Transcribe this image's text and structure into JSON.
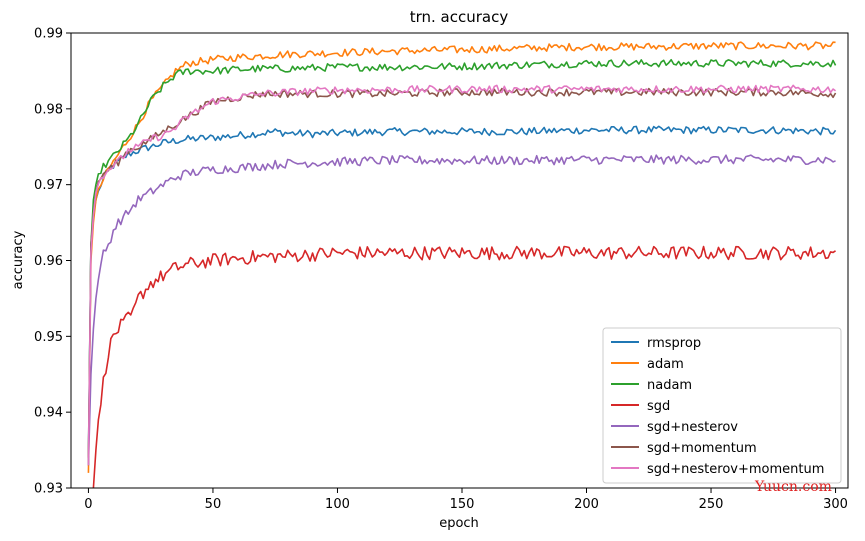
{
  "chart_data": {
    "type": "line",
    "title": "trn. accuracy",
    "xlabel": "epoch",
    "ylabel": "accuracy",
    "xlim": [
      -7,
      305
    ],
    "ylim": [
      0.93,
      0.99
    ],
    "xticks": [
      0,
      50,
      100,
      150,
      200,
      250,
      300
    ],
    "xtick_labels": [
      "0",
      "50",
      "100",
      "150",
      "200",
      "250",
      "300"
    ],
    "yticks": [
      0.93,
      0.94,
      0.95,
      0.96,
      0.97,
      0.98,
      0.99
    ],
    "ytick_labels": [
      "0.93",
      "0.94",
      "0.95",
      "0.96",
      "0.97",
      "0.98",
      "0.99"
    ],
    "grid": false,
    "legend_position": "lower-right",
    "watermark": "Yuucn.com",
    "series": [
      {
        "name": "rmsprop",
        "color": "#1f77b4",
        "x": [
          0,
          1,
          2,
          3,
          5,
          8,
          12,
          16,
          20,
          25,
          30,
          35,
          40,
          50,
          60,
          70,
          75,
          80,
          90,
          100,
          120,
          150,
          175,
          200,
          225,
          250,
          275,
          300
        ],
        "y": [
          0.934,
          0.962,
          0.966,
          0.968,
          0.97,
          0.972,
          0.973,
          0.974,
          0.9745,
          0.975,
          0.9755,
          0.9758,
          0.976,
          0.9762,
          0.9765,
          0.9768,
          0.977,
          0.9768,
          0.9767,
          0.9768,
          0.977,
          0.977,
          0.977,
          0.9772,
          0.9772,
          0.9772,
          0.9772,
          0.977
        ],
        "noise": 0.0005
      },
      {
        "name": "adam",
        "color": "#ff7f0e",
        "x": [
          0,
          1,
          2,
          3,
          5,
          8,
          12,
          16,
          20,
          25,
          30,
          35,
          40,
          50,
          60,
          70,
          80,
          100,
          120,
          150,
          175,
          200,
          225,
          250,
          275,
          300
        ],
        "y": [
          0.932,
          0.96,
          0.965,
          0.968,
          0.97,
          0.972,
          0.974,
          0.976,
          0.978,
          0.981,
          0.983,
          0.985,
          0.986,
          0.9865,
          0.9868,
          0.987,
          0.9872,
          0.9874,
          0.9876,
          0.9878,
          0.988,
          0.9882,
          0.9882,
          0.9883,
          0.9883,
          0.9883
        ],
        "noise": 0.0005
      },
      {
        "name": "nadam",
        "color": "#2ca02c",
        "x": [
          0,
          1,
          2,
          3,
          5,
          8,
          12,
          16,
          20,
          25,
          30,
          35,
          40,
          50,
          60,
          70,
          80,
          100,
          120,
          150,
          175,
          200,
          225,
          250,
          275,
          300
        ],
        "y": [
          0.933,
          0.962,
          0.968,
          0.97,
          0.972,
          0.973,
          0.9745,
          0.976,
          0.978,
          0.981,
          0.983,
          0.9845,
          0.985,
          0.985,
          0.9852,
          0.9853,
          0.9853,
          0.9855,
          0.9855,
          0.9856,
          0.9858,
          0.986,
          0.986,
          0.986,
          0.986,
          0.986
        ],
        "noise": 0.0005
      },
      {
        "name": "sgd",
        "color": "#d62728",
        "x": [
          2,
          3,
          4,
          5,
          6,
          8,
          10,
          12,
          15,
          18,
          20,
          25,
          30,
          35,
          40,
          50,
          60,
          70,
          80,
          100,
          120,
          150,
          175,
          200,
          225,
          250,
          275,
          300
        ],
        "y": [
          0.93,
          0.935,
          0.939,
          0.941,
          0.944,
          0.948,
          0.95,
          0.951,
          0.952,
          0.953,
          0.955,
          0.957,
          0.958,
          0.959,
          0.9595,
          0.96,
          0.9603,
          0.9605,
          0.9606,
          0.961,
          0.961,
          0.961,
          0.961,
          0.961,
          0.961,
          0.961,
          0.961,
          0.961
        ],
        "noise": 0.0009
      },
      {
        "name": "sgd+nesterov",
        "color": "#9467bd",
        "x": [
          0,
          1,
          2,
          3,
          4,
          5,
          6,
          8,
          10,
          12,
          15,
          20,
          25,
          30,
          35,
          40,
          50,
          60,
          70,
          80,
          100,
          120,
          150,
          175,
          200,
          225,
          250,
          275,
          300
        ],
        "y": [
          0.933,
          0.945,
          0.951,
          0.955,
          0.958,
          0.959,
          0.961,
          0.962,
          0.964,
          0.965,
          0.966,
          0.968,
          0.969,
          0.97,
          0.971,
          0.9715,
          0.972,
          0.9722,
          0.9725,
          0.9728,
          0.973,
          0.9732,
          0.9732,
          0.9732,
          0.9733,
          0.9733,
          0.9733,
          0.9733,
          0.9733
        ],
        "noise": 0.0006
      },
      {
        "name": "sgd+momentum",
        "color": "#8c564b",
        "x": [
          0,
          1,
          2,
          3,
          5,
          8,
          12,
          16,
          20,
          25,
          30,
          35,
          40,
          45,
          50,
          60,
          70,
          80,
          100,
          120,
          150,
          175,
          200,
          225,
          250,
          275,
          300
        ],
        "y": [
          0.934,
          0.962,
          0.966,
          0.969,
          0.971,
          0.972,
          0.973,
          0.9745,
          0.975,
          0.976,
          0.977,
          0.978,
          0.979,
          0.98,
          0.981,
          0.9815,
          0.982,
          0.982,
          0.982,
          0.982,
          0.9822,
          0.9822,
          0.9822,
          0.9822,
          0.9822,
          0.9822,
          0.982
        ],
        "noise": 0.0005
      },
      {
        "name": "sgd+nesterov+momentum",
        "color": "#e377c2",
        "x": [
          0,
          1,
          2,
          3,
          5,
          8,
          12,
          16,
          20,
          25,
          30,
          35,
          40,
          45,
          50,
          60,
          70,
          80,
          100,
          120,
          150,
          175,
          200,
          225,
          250,
          275,
          300
        ],
        "y": [
          0.933,
          0.961,
          0.966,
          0.969,
          0.971,
          0.972,
          0.973,
          0.9745,
          0.975,
          0.976,
          0.9765,
          0.9775,
          0.979,
          0.98,
          0.981,
          0.9815,
          0.982,
          0.9822,
          0.9825,
          0.9825,
          0.9826,
          0.9826,
          0.9826,
          0.9826,
          0.9826,
          0.9826,
          0.9826
        ],
        "noise": 0.0005
      }
    ]
  }
}
